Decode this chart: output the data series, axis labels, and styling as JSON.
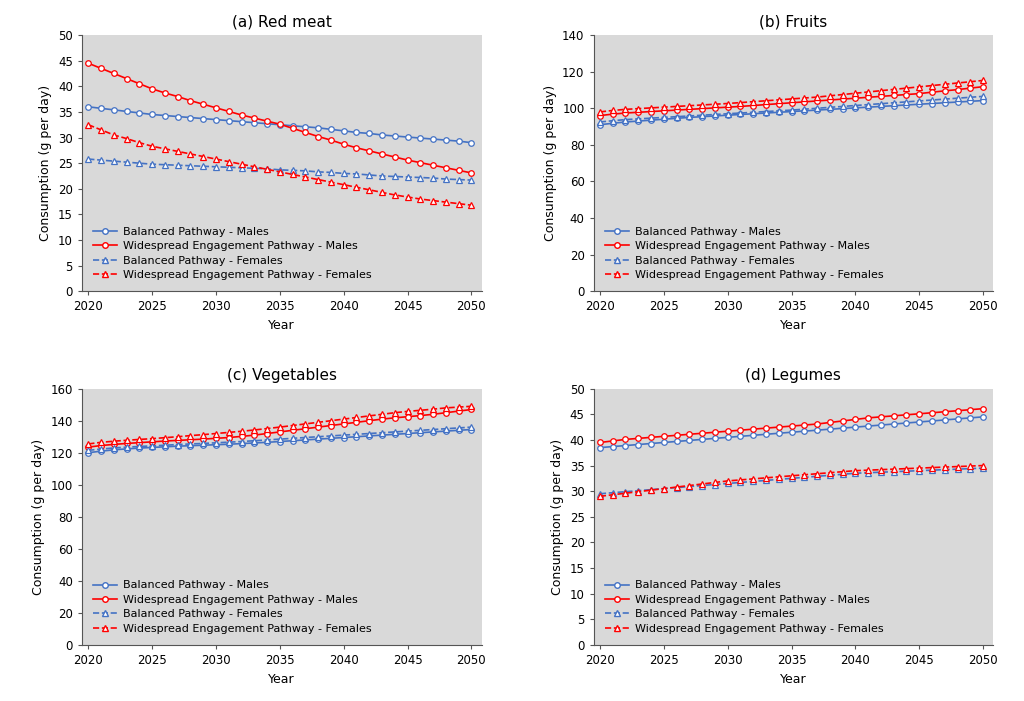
{
  "years": [
    2020,
    2021,
    2022,
    2023,
    2024,
    2025,
    2026,
    2027,
    2028,
    2029,
    2030,
    2031,
    2032,
    2033,
    2034,
    2035,
    2036,
    2037,
    2038,
    2039,
    2040,
    2041,
    2042,
    2043,
    2044,
    2045,
    2046,
    2047,
    2048,
    2049,
    2050
  ],
  "panels": [
    {
      "title": "(a) Red meat",
      "ylabel": "Consumption (g per day)",
      "xlabel": "Year",
      "ylim": [
        0,
        50
      ],
      "yticks": [
        0,
        5,
        10,
        15,
        20,
        25,
        30,
        35,
        40,
        45,
        50
      ],
      "series": {
        "bp_males": [
          36.0,
          35.7,
          35.4,
          35.1,
          34.8,
          34.5,
          34.3,
          34.1,
          33.9,
          33.7,
          33.5,
          33.3,
          33.1,
          32.9,
          32.7,
          32.5,
          32.3,
          32.1,
          31.9,
          31.6,
          31.3,
          31.0,
          30.8,
          30.5,
          30.3,
          30.1,
          29.9,
          29.7,
          29.5,
          29.3,
          29.0
        ],
        "wep_males": [
          44.5,
          43.5,
          42.5,
          41.5,
          40.5,
          39.5,
          38.7,
          38.0,
          37.2,
          36.5,
          35.8,
          35.1,
          34.4,
          33.8,
          33.2,
          32.6,
          31.8,
          31.0,
          30.2,
          29.5,
          28.7,
          28.0,
          27.4,
          26.8,
          26.2,
          25.6,
          25.1,
          24.6,
          24.1,
          23.6,
          23.1
        ],
        "bp_females": [
          25.8,
          25.6,
          25.4,
          25.2,
          25.0,
          24.8,
          24.7,
          24.6,
          24.5,
          24.4,
          24.3,
          24.2,
          24.1,
          24.0,
          23.9,
          23.7,
          23.6,
          23.5,
          23.3,
          23.2,
          23.0,
          22.9,
          22.7,
          22.5,
          22.4,
          22.3,
          22.2,
          22.1,
          21.9,
          21.8,
          21.7
        ],
        "wep_females": [
          32.5,
          31.5,
          30.5,
          29.8,
          29.0,
          28.3,
          27.8,
          27.3,
          26.8,
          26.3,
          25.8,
          25.3,
          24.8,
          24.3,
          23.8,
          23.3,
          22.8,
          22.3,
          21.8,
          21.3,
          20.8,
          20.3,
          19.8,
          19.3,
          18.8,
          18.4,
          18.0,
          17.7,
          17.4,
          17.1,
          16.8
        ]
      }
    },
    {
      "title": "(b) Fruits",
      "ylabel": "Consumption (g per day)",
      "xlabel": "Year",
      "ylim": [
        0,
        140
      ],
      "yticks": [
        0,
        20,
        40,
        60,
        80,
        100,
        120,
        140
      ],
      "series": {
        "bp_males": [
          91.0,
          91.8,
          92.5,
          93.0,
          93.5,
          94.0,
          94.5,
          95.0,
          95.4,
          95.8,
          96.2,
          96.6,
          97.0,
          97.4,
          97.8,
          98.2,
          98.6,
          99.0,
          99.4,
          99.8,
          100.2,
          100.6,
          101.0,
          101.4,
          101.8,
          102.2,
          102.6,
          103.0,
          103.4,
          103.8,
          104.2
        ],
        "wep_males": [
          96.0,
          96.8,
          97.4,
          97.8,
          98.2,
          98.6,
          99.0,
          99.4,
          99.8,
          100.2,
          100.6,
          101.0,
          101.5,
          102.0,
          102.5,
          103.0,
          103.5,
          104.0,
          104.5,
          105.0,
          105.5,
          106.0,
          106.5,
          107.0,
          107.5,
          108.0,
          108.8,
          109.5,
          110.2,
          111.0,
          111.8
        ],
        "bp_females": [
          92.5,
          93.2,
          93.8,
          94.2,
          94.6,
          95.0,
          95.4,
          95.8,
          96.2,
          96.6,
          97.0,
          97.4,
          97.8,
          98.2,
          98.6,
          99.0,
          99.5,
          100.0,
          100.5,
          101.0,
          101.5,
          102.0,
          102.5,
          103.0,
          103.5,
          104.0,
          104.5,
          105.0,
          105.5,
          106.0,
          106.5
        ],
        "wep_females": [
          98.0,
          98.8,
          99.4,
          99.8,
          100.2,
          100.6,
          101.0,
          101.4,
          101.8,
          102.2,
          102.6,
          103.1,
          103.6,
          104.1,
          104.6,
          105.1,
          105.6,
          106.1,
          106.8,
          107.5,
          108.2,
          108.9,
          109.6,
          110.3,
          111.0,
          111.7,
          112.4,
          113.1,
          113.8,
          114.5,
          115.2
        ]
      }
    },
    {
      "title": "(c) Vegetables",
      "ylabel": "Consumption (g per day)",
      "xlabel": "Year",
      "ylim": [
        0,
        160
      ],
      "yticks": [
        0,
        20,
        40,
        60,
        80,
        100,
        120,
        140,
        160
      ],
      "series": {
        "bp_males": [
          120.0,
          121.0,
          121.8,
          122.4,
          122.9,
          123.3,
          123.7,
          124.1,
          124.4,
          124.7,
          125.0,
          125.3,
          125.7,
          126.1,
          126.5,
          127.0,
          127.5,
          128.0,
          128.5,
          129.0,
          129.5,
          130.0,
          130.5,
          131.0,
          131.5,
          132.0,
          132.5,
          133.0,
          133.5,
          134.0,
          134.5
        ],
        "wep_males": [
          123.5,
          124.5,
          125.2,
          125.8,
          126.3,
          126.8,
          127.3,
          127.7,
          128.1,
          128.5,
          129.0,
          129.5,
          130.2,
          131.0,
          132.0,
          133.0,
          134.0,
          135.0,
          136.0,
          137.0,
          138.0,
          139.0,
          140.0,
          141.0,
          141.8,
          142.5,
          143.2,
          144.0,
          145.0,
          146.0,
          147.0
        ],
        "bp_females": [
          121.5,
          122.3,
          123.0,
          123.5,
          123.9,
          124.3,
          124.7,
          125.1,
          125.5,
          125.8,
          126.2,
          126.6,
          127.0,
          127.5,
          128.0,
          128.5,
          129.0,
          129.5,
          130.0,
          130.5,
          131.0,
          131.5,
          132.0,
          132.5,
          133.0,
          133.5,
          134.0,
          134.5,
          135.0,
          135.5,
          136.0
        ],
        "wep_females": [
          125.5,
          126.5,
          127.2,
          127.8,
          128.3,
          128.8,
          129.4,
          130.0,
          130.7,
          131.3,
          132.0,
          132.7,
          133.4,
          134.2,
          135.1,
          136.0,
          137.0,
          138.0,
          139.0,
          140.0,
          141.0,
          142.0,
          143.0,
          144.0,
          145.0,
          145.8,
          146.5,
          147.2,
          148.0,
          148.5,
          149.0
        ]
      }
    },
    {
      "title": "(d) Legumes",
      "ylabel": "Consumption (g per day)",
      "xlabel": "Year",
      "ylim": [
        0,
        50
      ],
      "yticks": [
        0,
        5,
        10,
        15,
        20,
        25,
        30,
        35,
        40,
        45,
        50
      ],
      "series": {
        "bp_males": [
          38.5,
          38.7,
          38.9,
          39.1,
          39.3,
          39.5,
          39.7,
          39.9,
          40.1,
          40.3,
          40.5,
          40.7,
          40.9,
          41.1,
          41.3,
          41.5,
          41.7,
          41.9,
          42.1,
          42.3,
          42.5,
          42.7,
          42.9,
          43.1,
          43.3,
          43.5,
          43.7,
          43.9,
          44.1,
          44.3,
          44.5
        ],
        "wep_males": [
          39.5,
          39.8,
          40.1,
          40.3,
          40.5,
          40.7,
          40.9,
          41.1,
          41.3,
          41.5,
          41.7,
          41.9,
          42.1,
          42.3,
          42.5,
          42.7,
          42.9,
          43.1,
          43.4,
          43.7,
          44.0,
          44.3,
          44.5,
          44.7,
          44.9,
          45.1,
          45.3,
          45.5,
          45.7,
          45.9,
          46.1
        ],
        "bp_females": [
          29.5,
          29.7,
          29.9,
          30.1,
          30.3,
          30.5,
          30.7,
          30.9,
          31.1,
          31.3,
          31.5,
          31.7,
          31.9,
          32.1,
          32.3,
          32.5,
          32.7,
          32.9,
          33.1,
          33.3,
          33.5,
          33.6,
          33.7,
          33.8,
          33.9,
          34.0,
          34.1,
          34.2,
          34.3,
          34.4,
          34.5
        ],
        "wep_females": [
          29.0,
          29.3,
          29.6,
          29.9,
          30.2,
          30.5,
          30.8,
          31.1,
          31.4,
          31.7,
          32.0,
          32.2,
          32.4,
          32.6,
          32.8,
          33.0,
          33.2,
          33.4,
          33.6,
          33.8,
          34.0,
          34.1,
          34.2,
          34.3,
          34.4,
          34.5,
          34.6,
          34.7,
          34.8,
          34.9,
          35.0
        ]
      }
    }
  ],
  "legend": [
    {
      "label": "Balanced Pathway - Males",
      "color": "#4472C4",
      "linestyle": "solid",
      "marker": "o"
    },
    {
      "label": "Widespread Engagement Pathway - Males",
      "color": "#FF0000",
      "linestyle": "solid",
      "marker": "o"
    },
    {
      "label": "Balanced Pathway - Females",
      "color": "#4472C4",
      "linestyle": "dashed",
      "marker": "^"
    },
    {
      "label": "Widespread Engagement Pathway - Females",
      "color": "#FF0000",
      "linestyle": "dashed",
      "marker": "^"
    }
  ],
  "bg_color": "#D9D9D9",
  "fig_bg_color": "#FFFFFF",
  "marker_size": 4,
  "linewidth": 1.2,
  "title_fontsize": 11,
  "label_fontsize": 9,
  "tick_fontsize": 8.5,
  "legend_fontsize": 8
}
